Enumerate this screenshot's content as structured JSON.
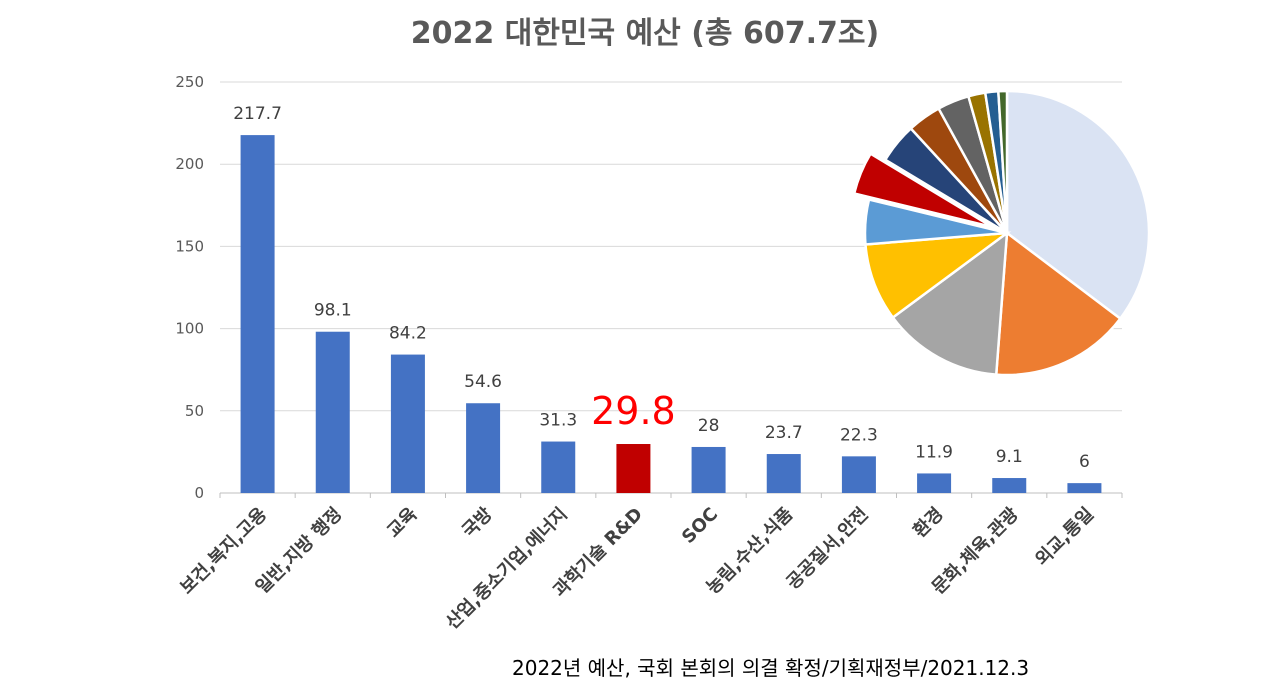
{
  "chart_data": {
    "type": "bar",
    "title": "2022 대한민국 예산 (총 607.7조)",
    "categories": [
      "보건,복지,고용",
      "일반,지방 행정",
      "교육",
      "국방",
      "산업,중소기업,에너지",
      "과학기술 R&D",
      "SOC",
      "농림,수산,식품",
      "공공질서,안전",
      "환경",
      "문화,체육,관광",
      "외교,통일"
    ],
    "values": [
      217.7,
      98.1,
      84.2,
      54.6,
      31.3,
      29.8,
      28,
      23.7,
      22.3,
      11.9,
      9.1,
      6
    ],
    "data_labels": [
      "217.7",
      "98.1",
      "84.2",
      "54.6",
      "31.3",
      "29.8",
      "28",
      "23.7",
      "22.3",
      "11.9",
      "9.1",
      "6"
    ],
    "highlight_index": 5,
    "ylim": [
      0,
      250
    ],
    "yticks": [
      0,
      50,
      100,
      150,
      200,
      250
    ],
    "grid": true,
    "xlabel": "",
    "ylabel": "",
    "colors": {
      "bar": "#4472C4",
      "highlight_bar": "#C00000",
      "highlight_label": "#FF0000",
      "grid": "#D9D9D9",
      "axis": "#BFBFBF"
    },
    "inset": {
      "type": "pie",
      "values": [
        217.7,
        98.1,
        84.2,
        54.6,
        31.3,
        29.8,
        28,
        23.7,
        22.3,
        11.9,
        9.1,
        6
      ],
      "exploded_index": 5,
      "colors": [
        "#DAE3F3",
        "#ED7D31",
        "#A5A5A5",
        "#FFC000",
        "#5B9BD5",
        "#C00000",
        "#264478",
        "#9E480E",
        "#636363",
        "#997300",
        "#255E91",
        "#43682B"
      ]
    }
  },
  "source_note": "2022년 예산, 국회 본회의 의결 확정/기획재정부/2021.12.3"
}
